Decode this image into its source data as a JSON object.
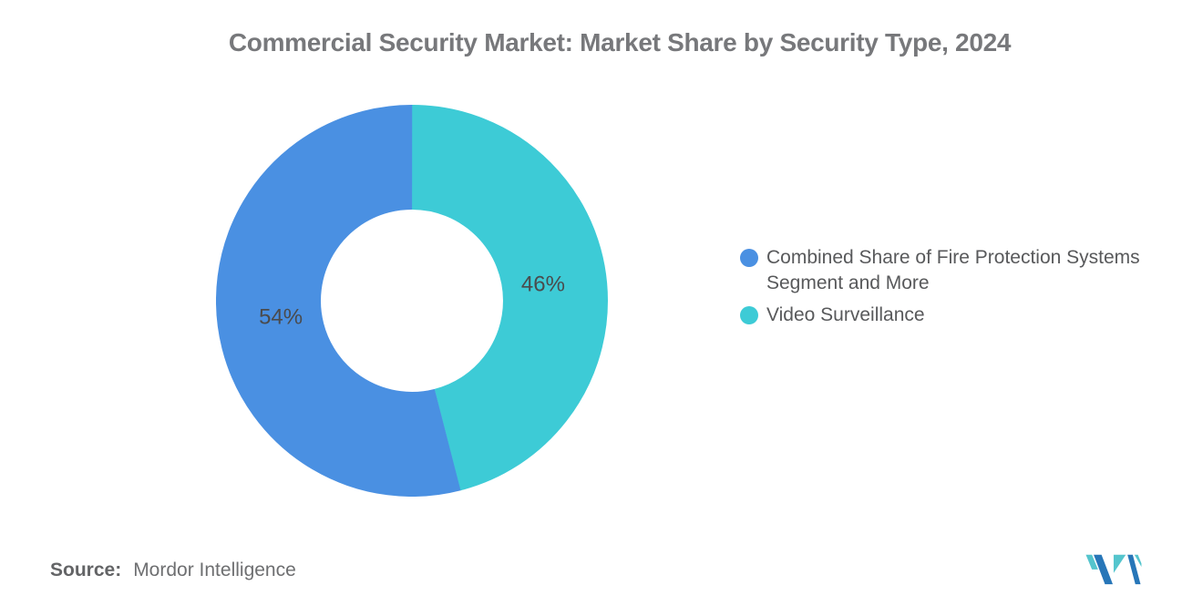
{
  "chart_data": {
    "type": "pie",
    "subtype": "donut",
    "title": "Commercial Security Market: Market Share by Security Type, 2024",
    "unit": "%",
    "start_angle_deg": 0,
    "direction": "clockwise",
    "inner_radius_ratio": 0.465,
    "legend_position": "right",
    "data_label_color": "#4A4B4D",
    "segments": [
      {
        "label": "Video Surveillance",
        "value": 46,
        "display": "46%",
        "color": "#3DCBD6"
      },
      {
        "label": "Combined Share of Fire Protection Systems Segment and More",
        "value": 54,
        "display": "54%",
        "color": "#4A90E2"
      }
    ]
  },
  "legend": {
    "items": [
      {
        "label": "Combined Share of Fire Protection Systems Segment and More",
        "color": "#4A90E2"
      },
      {
        "label": "Video Surveillance",
        "color": "#3DCBD6"
      }
    ]
  },
  "source": {
    "label": "Source:",
    "value": "Mordor Intelligence"
  },
  "branding": {
    "name": "Mordor Intelligence logo mark",
    "blue": "#2776B8",
    "teal": "#55C5CD"
  },
  "colors": {
    "background": "#FFFFFF",
    "title_text": "#77787B",
    "legend_text": "#58595B",
    "source_text": "#6E6F71"
  }
}
